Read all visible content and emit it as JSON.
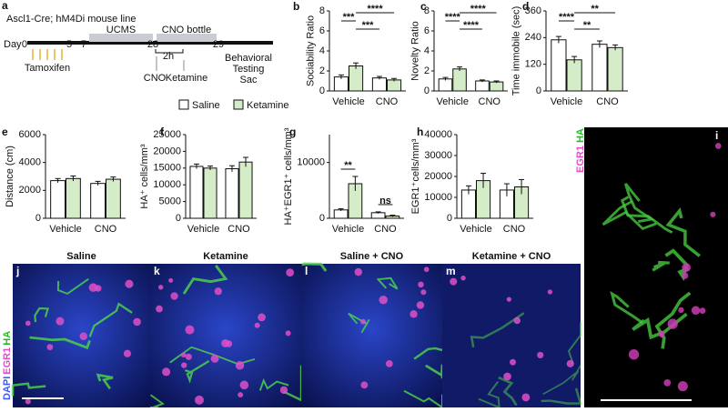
{
  "timeline": {
    "letter": "a",
    "title": "Ascl1-Cre; hM4Di mouse line",
    "day_label": "Day",
    "days": [
      "0",
      "5",
      "7",
      "28",
      "29"
    ],
    "phases": [
      "UCMS",
      "CNO bottle"
    ],
    "interval": "2h",
    "treatments": [
      "Tamoxifen",
      "CNO",
      "Ketamine"
    ],
    "endpoint": [
      "Behavioral",
      "Testing",
      "Sac"
    ]
  },
  "legend": [
    {
      "name": "Saline",
      "color": "#ffffff"
    },
    {
      "name": "Ketamine",
      "color": "#d5ecc9"
    }
  ],
  "chart_data": [
    {
      "type": "bar",
      "letter": "b",
      "y_label": "Sociability Ratio",
      "categories": [
        "Vehicle",
        "CNO"
      ],
      "series": [
        {
          "values": [
            1.4,
            1.3
          ],
          "errors": [
            0.2,
            0.15
          ]
        },
        {
          "values": [
            2.5,
            1.1
          ],
          "errors": [
            0.3,
            0.15
          ]
        }
      ],
      "ylim": [
        0,
        8
      ],
      "yticks": [
        0,
        2,
        4,
        6,
        8
      ],
      "annotations": [
        {
          "text": "****",
          "from": 1,
          "to": 3
        },
        {
          "text": "***",
          "from": 0,
          "to": 1
        },
        {
          "text": "***",
          "from": 1,
          "to": 2
        }
      ]
    },
    {
      "type": "bar",
      "letter": "c",
      "y_label": "Novelty Ratio",
      "categories": [
        "Vehicle",
        "CNO"
      ],
      "series": [
        {
          "values": [
            1.2,
            1.0
          ],
          "errors": [
            0.15,
            0.1
          ]
        },
        {
          "values": [
            2.2,
            0.9
          ],
          "errors": [
            0.2,
            0.1
          ]
        }
      ],
      "ylim": [
        0,
        8
      ],
      "yticks": [
        0,
        2,
        4,
        6,
        8
      ],
      "annotations": [
        {
          "text": "****",
          "from": 1,
          "to": 3
        },
        {
          "text": "****",
          "from": 0,
          "to": 1
        },
        {
          "text": "****",
          "from": 1,
          "to": 2
        }
      ]
    },
    {
      "type": "bar",
      "letter": "d",
      "y_label": "Time immobile (sec)",
      "categories": [
        "Vehicle",
        "CNO"
      ],
      "series": [
        {
          "values": [
            230,
            210
          ],
          "errors": [
            15,
            15
          ]
        },
        {
          "values": [
            140,
            195
          ],
          "errors": [
            15,
            12
          ]
        }
      ],
      "ylim": [
        0,
        360
      ],
      "yticks": [
        0,
        120,
        240,
        360
      ],
      "annotations": [
        {
          "text": "**",
          "from": 1,
          "to": 3
        },
        {
          "text": "****",
          "from": 0,
          "to": 1
        },
        {
          "text": "**",
          "from": 1,
          "to": 2
        }
      ]
    },
    {
      "type": "bar",
      "letter": "e",
      "y_label": "Distance (cm)",
      "categories": [
        "Vehicle",
        "CNO"
      ],
      "series": [
        {
          "values": [
            2700,
            2500
          ],
          "errors": [
            150,
            150
          ]
        },
        {
          "values": [
            2850,
            2800
          ],
          "errors": [
            180,
            160
          ]
        }
      ],
      "ylim": [
        0,
        6000
      ],
      "yticks": [
        0,
        2000,
        4000,
        6000
      ],
      "annotations": []
    },
    {
      "type": "bar",
      "letter": "f",
      "y_label": "HA⁺ cells/mm³",
      "categories": [
        "Vehicle",
        "CNO"
      ],
      "series": [
        {
          "values": [
            15500,
            14800
          ],
          "errors": [
            700,
            900
          ]
        },
        {
          "values": [
            15000,
            16800
          ],
          "errors": [
            600,
            1400
          ]
        }
      ],
      "ylim": [
        0,
        25000
      ],
      "yticks": [
        0,
        5000,
        10000,
        15000,
        20000,
        25000
      ],
      "annotations": []
    },
    {
      "type": "bar",
      "letter": "g",
      "y_label": "HA⁺EGR1⁺ cells/mm³",
      "categories": [
        "Vehicle",
        "CNO"
      ],
      "series": [
        {
          "values": [
            1500,
            1000
          ],
          "errors": [
            200,
            150
          ]
        },
        {
          "values": [
            6200,
            400
          ],
          "errors": [
            1300,
            150
          ]
        }
      ],
      "ylim": [
        0,
        15000
      ],
      "yticks": [
        0,
        10000
      ],
      "annotations": [
        {
          "text": "**",
          "from": 0,
          "to": 1
        },
        {
          "text": "ns",
          "from": 2,
          "to": 3
        }
      ]
    },
    {
      "type": "bar",
      "letter": "h",
      "y_label": "EGR1⁺cells/mm³",
      "categories": [
        "Vehicle",
        "CNO"
      ],
      "series": [
        {
          "values": [
            13500,
            13500
          ],
          "errors": [
            2000,
            3000
          ]
        },
        {
          "values": [
            18000,
            15000
          ],
          "errors": [
            3500,
            3500
          ]
        }
      ],
      "ylim": [
        0,
        40000
      ],
      "yticks": [
        0,
        10000,
        20000,
        30000,
        40000
      ],
      "annotations": []
    }
  ],
  "images": {
    "stain_labels": [
      "DAPI",
      "EGR1",
      "HA"
    ],
    "panels": [
      {
        "letter": "j",
        "title": "Saline"
      },
      {
        "letter": "k",
        "title": "Ketamine"
      },
      {
        "letter": "l",
        "title": "Saline + CNO"
      },
      {
        "letter": "m",
        "title": "Ketamine + CNO"
      }
    ],
    "zoom": {
      "letter": "i",
      "stain_labels": [
        "EGR1",
        "HA"
      ]
    }
  }
}
